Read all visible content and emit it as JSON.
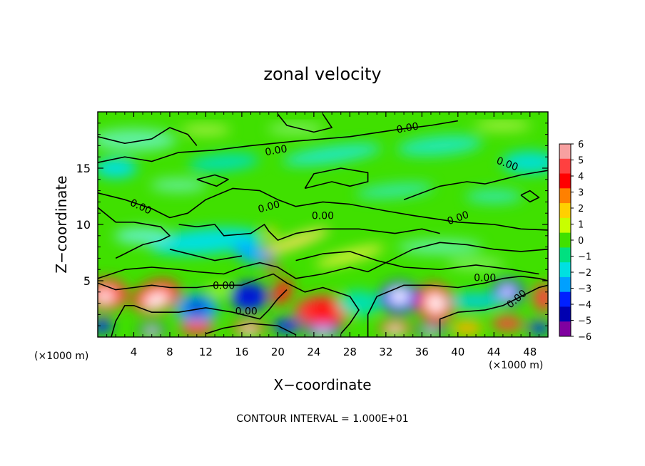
{
  "chart_data": {
    "type": "heatmap",
    "title": "zonal velocity",
    "xlabel": "X−coordinate",
    "ylabel": "Z−coordinate",
    "x_unit_left": "(×1000 m)",
    "x_unit_right": "(×1000 m)",
    "footer": "CONTOUR INTERVAL = 1.000E+01",
    "xlim": [
      0,
      50
    ],
    "ylim": [
      0,
      20
    ],
    "x_ticks": [
      4,
      8,
      12,
      16,
      20,
      24,
      28,
      32,
      36,
      40,
      44,
      48
    ],
    "x_tick_labels": [
      "4",
      "8",
      "12",
      "16",
      "20",
      "24",
      "28",
      "32",
      "36",
      "40",
      "44",
      "48"
    ],
    "y_ticks": [
      5,
      10,
      15
    ],
    "y_tick_labels": [
      "5",
      "10",
      "15"
    ],
    "colorbar": {
      "ticks": [
        6,
        5,
        4,
        3,
        2,
        1,
        0,
        -1,
        -2,
        -3,
        -4,
        -5,
        -6
      ],
      "tick_labels": [
        "6",
        "5",
        "4",
        "3",
        "2",
        "1",
        "0",
        "−1",
        "−2",
        "−3",
        "−4",
        "−5",
        "−6"
      ],
      "colors": [
        "#f7a0a0",
        "#ff4040",
        "#ff0000",
        "#ff8000",
        "#ffd000",
        "#c8ff00",
        "#40e000",
        "#00e080",
        "#00e0e0",
        "#00a0ff",
        "#0020ff",
        "#0000b0",
        "#8000a0"
      ]
    },
    "contour_labels": [
      {
        "text": "0.00",
        "x": 19.8,
        "y": 16.6,
        "angle": -10
      },
      {
        "text": "0.00",
        "x": 34.4,
        "y": 18.6,
        "angle": -10
      },
      {
        "text": "0.00",
        "x": 45.5,
        "y": 15.4,
        "angle": 20
      },
      {
        "text": "0.00",
        "x": 4.8,
        "y": 11.6,
        "angle": 25
      },
      {
        "text": "0.00",
        "x": 19.0,
        "y": 11.6,
        "angle": -15
      },
      {
        "text": "0.00",
        "x": 25.0,
        "y": 10.8,
        "angle": 0
      },
      {
        "text": "0.00",
        "x": 40.0,
        "y": 10.6,
        "angle": -20
      },
      {
        "text": "0.00",
        "x": 14.0,
        "y": 4.6,
        "angle": 0
      },
      {
        "text": "0.00",
        "x": 16.5,
        "y": 2.3,
        "angle": 0
      },
      {
        "text": "0.00",
        "x": 43.0,
        "y": 5.3,
        "angle": 0
      },
      {
        "text": "0.00",
        "x": 46.5,
        "y": 3.4,
        "angle": -40
      }
    ]
  }
}
